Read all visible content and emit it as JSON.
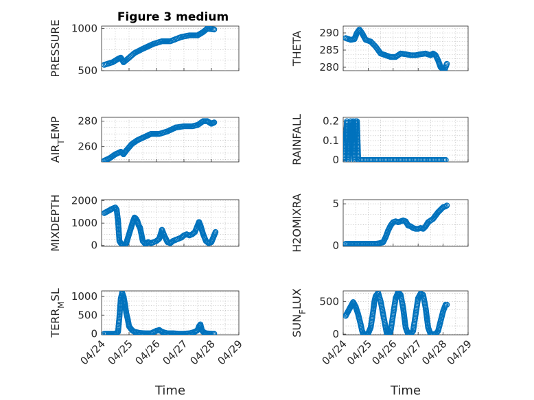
{
  "figure": {
    "title": "Figure 3 medium"
  },
  "colors": {
    "marker": "#0072BD"
  },
  "chart_data": [
    {
      "name": "pressure",
      "type": "scatter",
      "title": "Figure 3 medium",
      "ylabel": "PRESSURE",
      "xlabel": "",
      "xlim": [
        0,
        5
      ],
      "ylim": [
        500,
        1030
      ],
      "yticks": [
        500,
        1000
      ],
      "xticks": [
        0,
        1,
        2,
        3,
        4,
        5
      ],
      "xticklabels": [],
      "x": [
        0.1,
        0.4,
        0.6,
        0.7,
        0.8,
        0.95,
        1.2,
        1.5,
        1.9,
        2.2,
        2.5,
        2.9,
        3.2,
        3.5,
        3.7,
        3.85,
        4.1
      ],
      "y": [
        570,
        600,
        640,
        655,
        600,
        640,
        710,
        760,
        820,
        850,
        850,
        900,
        920,
        920,
        960,
        1000,
        990
      ]
    },
    {
      "name": "theta",
      "type": "scatter",
      "title": "",
      "ylabel": "THETA",
      "xlabel": "",
      "xlim": [
        0,
        5
      ],
      "ylim": [
        279,
        292
      ],
      "yticks": [
        280,
        285,
        290
      ],
      "xticks": [
        0,
        1,
        2,
        3,
        4,
        5
      ],
      "xticklabels": [],
      "x": [
        0.1,
        0.3,
        0.45,
        0.55,
        0.65,
        0.75,
        0.9,
        1.1,
        1.3,
        1.5,
        1.7,
        1.9,
        2.1,
        2.3,
        2.5,
        2.7,
        2.9,
        3.1,
        3.3,
        3.5,
        3.6,
        3.7,
        3.8,
        3.85,
        3.9,
        4.0,
        4.05,
        4.15
      ],
      "y": [
        288.5,
        288,
        288.2,
        290,
        291,
        290,
        288,
        287.5,
        286,
        284,
        283.5,
        283,
        283,
        284,
        283.8,
        283.5,
        283.5,
        283.8,
        284,
        283.5,
        284,
        283.5,
        282,
        281,
        280,
        279.5,
        279,
        281
      ]
    },
    {
      "name": "air_temp",
      "type": "scatter",
      "title": "",
      "ylabel": "AIR_TEMP",
      "xlabel": "",
      "xlim": [
        0,
        5
      ],
      "ylim": [
        248,
        283
      ],
      "yticks": [
        260,
        280
      ],
      "xticks": [
        0,
        1,
        2,
        3,
        4,
        5
      ],
      "xticklabels": [],
      "x": [
        0.1,
        0.3,
        0.5,
        0.7,
        0.8,
        0.9,
        1.1,
        1.3,
        1.5,
        1.8,
        2.1,
        2.4,
        2.7,
        3.0,
        3.3,
        3.5,
        3.7,
        3.85,
        4.0,
        4.1
      ],
      "y": [
        249,
        251,
        254,
        256,
        254,
        257,
        262,
        265,
        267,
        270,
        270,
        272,
        275,
        276,
        276,
        277,
        280,
        280,
        278,
        279
      ]
    },
    {
      "name": "rainfall",
      "type": "scatter",
      "title": "",
      "ylabel": "RAINFALL",
      "xlabel": "",
      "xlim": [
        0,
        5
      ],
      "ylim": [
        -0.01,
        0.22
      ],
      "yticks": [
        0,
        0.1,
        0.2
      ],
      "xticks": [
        0,
        1,
        2,
        3,
        4,
        5
      ],
      "xticklabels": [],
      "x": [
        0.05,
        0.15,
        0.2,
        0.25,
        0.3,
        0.35,
        0.4,
        0.45,
        0.5,
        0.55,
        0.6
      ],
      "y": [
        0,
        0.2,
        0,
        0.1,
        0.2,
        0.1,
        0.2,
        0,
        0.2,
        0.2,
        0
      ],
      "baseline": {
        "x0": 0.6,
        "x1": 4.15,
        "y": 0
      }
    },
    {
      "name": "mixdepth",
      "type": "scatter",
      "title": "",
      "ylabel": "MIXDEPTH",
      "xlabel": "",
      "xlim": [
        0,
        5
      ],
      "ylim": [
        -40,
        2050
      ],
      "yticks": [
        0,
        1000,
        2000
      ],
      "xticks": [
        0,
        1,
        2,
        3,
        4,
        5
      ],
      "xticklabels": [],
      "x": [
        0.1,
        0.25,
        0.4,
        0.5,
        0.55,
        0.6,
        0.65,
        0.7,
        0.75,
        0.8,
        0.85,
        0.9,
        0.95,
        1.0,
        1.05,
        1.1,
        1.15,
        1.2,
        1.25,
        1.3,
        1.35,
        1.4,
        1.5,
        1.6,
        1.7,
        1.8,
        1.9,
        2.0,
        2.1,
        2.2,
        2.3,
        2.4,
        2.5,
        2.6,
        2.7,
        2.8,
        2.9,
        3.0,
        3.1,
        3.2,
        3.3,
        3.4,
        3.5,
        3.55,
        3.6,
        3.65,
        3.7,
        3.8,
        3.9,
        4.0,
        4.05,
        4.1,
        4.15
      ],
      "y": [
        1450,
        1550,
        1650,
        1700,
        1600,
        1100,
        200,
        100,
        50,
        0,
        20,
        100,
        300,
        500,
        700,
        900,
        1100,
        1250,
        1200,
        1100,
        900,
        800,
        200,
        50,
        150,
        100,
        150,
        200,
        300,
        700,
        400,
        150,
        100,
        200,
        250,
        300,
        350,
        450,
        500,
        450,
        500,
        600,
        900,
        1050,
        900,
        700,
        500,
        200,
        100,
        150,
        300,
        450,
        600
      ]
    },
    {
      "name": "h2omixra",
      "type": "scatter",
      "title": "",
      "ylabel": "H2OMIXRA",
      "xlabel": "",
      "xlim": [
        0,
        5
      ],
      "ylim": [
        -0.1,
        5.5
      ],
      "yticks": [
        0,
        5
      ],
      "xticks": [
        0,
        1,
        2,
        3,
        4,
        5
      ],
      "xticklabels": [],
      "x": [
        0.1,
        0.3,
        0.5,
        0.7,
        0.9,
        1.1,
        1.3,
        1.5,
        1.6,
        1.7,
        1.8,
        1.9,
        2.0,
        2.1,
        2.2,
        2.3,
        2.4,
        2.5,
        2.6,
        2.7,
        2.8,
        2.9,
        3.0,
        3.1,
        3.2,
        3.3,
        3.4,
        3.5,
        3.6,
        3.7,
        3.8,
        3.9,
        4.0,
        4.1,
        4.15
      ],
      "y": [
        0.2,
        0.2,
        0.2,
        0.2,
        0.2,
        0.2,
        0.2,
        0.3,
        0.4,
        1.0,
        1.8,
        2.4,
        2.8,
        2.9,
        2.8,
        2.9,
        3.0,
        2.9,
        2.4,
        2.3,
        2.1,
        2.0,
        2.0,
        2.1,
        2.0,
        2.3,
        2.8,
        3.0,
        3.2,
        3.6,
        4.0,
        4.3,
        4.6,
        4.7,
        4.8
      ]
    },
    {
      "name": "terr_msl",
      "type": "scatter",
      "title": "",
      "ylabel": "TERR_MSL",
      "xlabel": "Time",
      "xlim": [
        0,
        5
      ],
      "ylim": [
        -30,
        1150
      ],
      "yticks": [
        0,
        500,
        1000
      ],
      "xticks": [
        0,
        1,
        2,
        3,
        4,
        5
      ],
      "xticklabels": [
        "04/24",
        "04/25",
        "04/26",
        "04/27",
        "04/28",
        "04/29"
      ],
      "x": [
        0.1,
        0.3,
        0.5,
        0.6,
        0.65,
        0.7,
        0.75,
        0.8,
        0.85,
        0.9,
        0.95,
        1.0,
        1.1,
        1.2,
        1.4,
        1.6,
        1.8,
        2.0,
        2.1,
        2.2,
        2.4,
        2.6,
        2.8,
        3.0,
        3.2,
        3.4,
        3.5,
        3.55,
        3.6,
        3.65,
        3.7,
        3.8,
        4.0,
        4.1
      ],
      "y": [
        0,
        0,
        0,
        50,
        450,
        950,
        1100,
        1000,
        800,
        550,
        400,
        200,
        100,
        50,
        20,
        10,
        10,
        80,
        100,
        50,
        10,
        10,
        0,
        0,
        10,
        50,
        100,
        200,
        250,
        100,
        50,
        10,
        0,
        0
      ]
    },
    {
      "name": "sun_flux",
      "type": "scatter",
      "title": "",
      "ylabel": "SUN_FLUX",
      "xlabel": "Time",
      "xlim": [
        0,
        5
      ],
      "ylim": [
        -10,
        660
      ],
      "yticks": [
        0,
        500
      ],
      "xticks": [
        0,
        1,
        2,
        3,
        4,
        5
      ],
      "xticklabels": [
        "04/24",
        "04/25",
        "04/26",
        "04/27",
        "04/28",
        "04/29"
      ],
      "x": [
        0.1,
        0.2,
        0.3,
        0.4,
        0.5,
        0.6,
        0.7,
        0.75,
        0.8,
        0.85,
        0.9,
        1.0,
        1.1,
        1.2,
        1.25,
        1.3,
        1.4,
        1.5,
        1.6,
        1.7,
        1.75,
        1.8,
        1.85,
        1.9,
        2.0,
        2.1,
        2.2,
        2.3,
        2.4,
        2.5,
        2.6,
        2.7,
        2.8,
        2.9,
        3.0,
        3.1,
        3.2,
        3.3,
        3.4,
        3.5,
        3.6,
        3.7,
        3.8,
        3.9,
        4.0,
        4.1,
        4.15
      ],
      "y": [
        280,
        350,
        420,
        490,
        420,
        300,
        150,
        60,
        0,
        0,
        0,
        10,
        100,
        350,
        500,
        580,
        630,
        500,
        300,
        100,
        0,
        0,
        0,
        50,
        300,
        550,
        640,
        600,
        400,
        100,
        0,
        0,
        50,
        300,
        550,
        620,
        600,
        400,
        100,
        0,
        0,
        0,
        50,
        200,
        350,
        450,
        450
      ]
    }
  ]
}
